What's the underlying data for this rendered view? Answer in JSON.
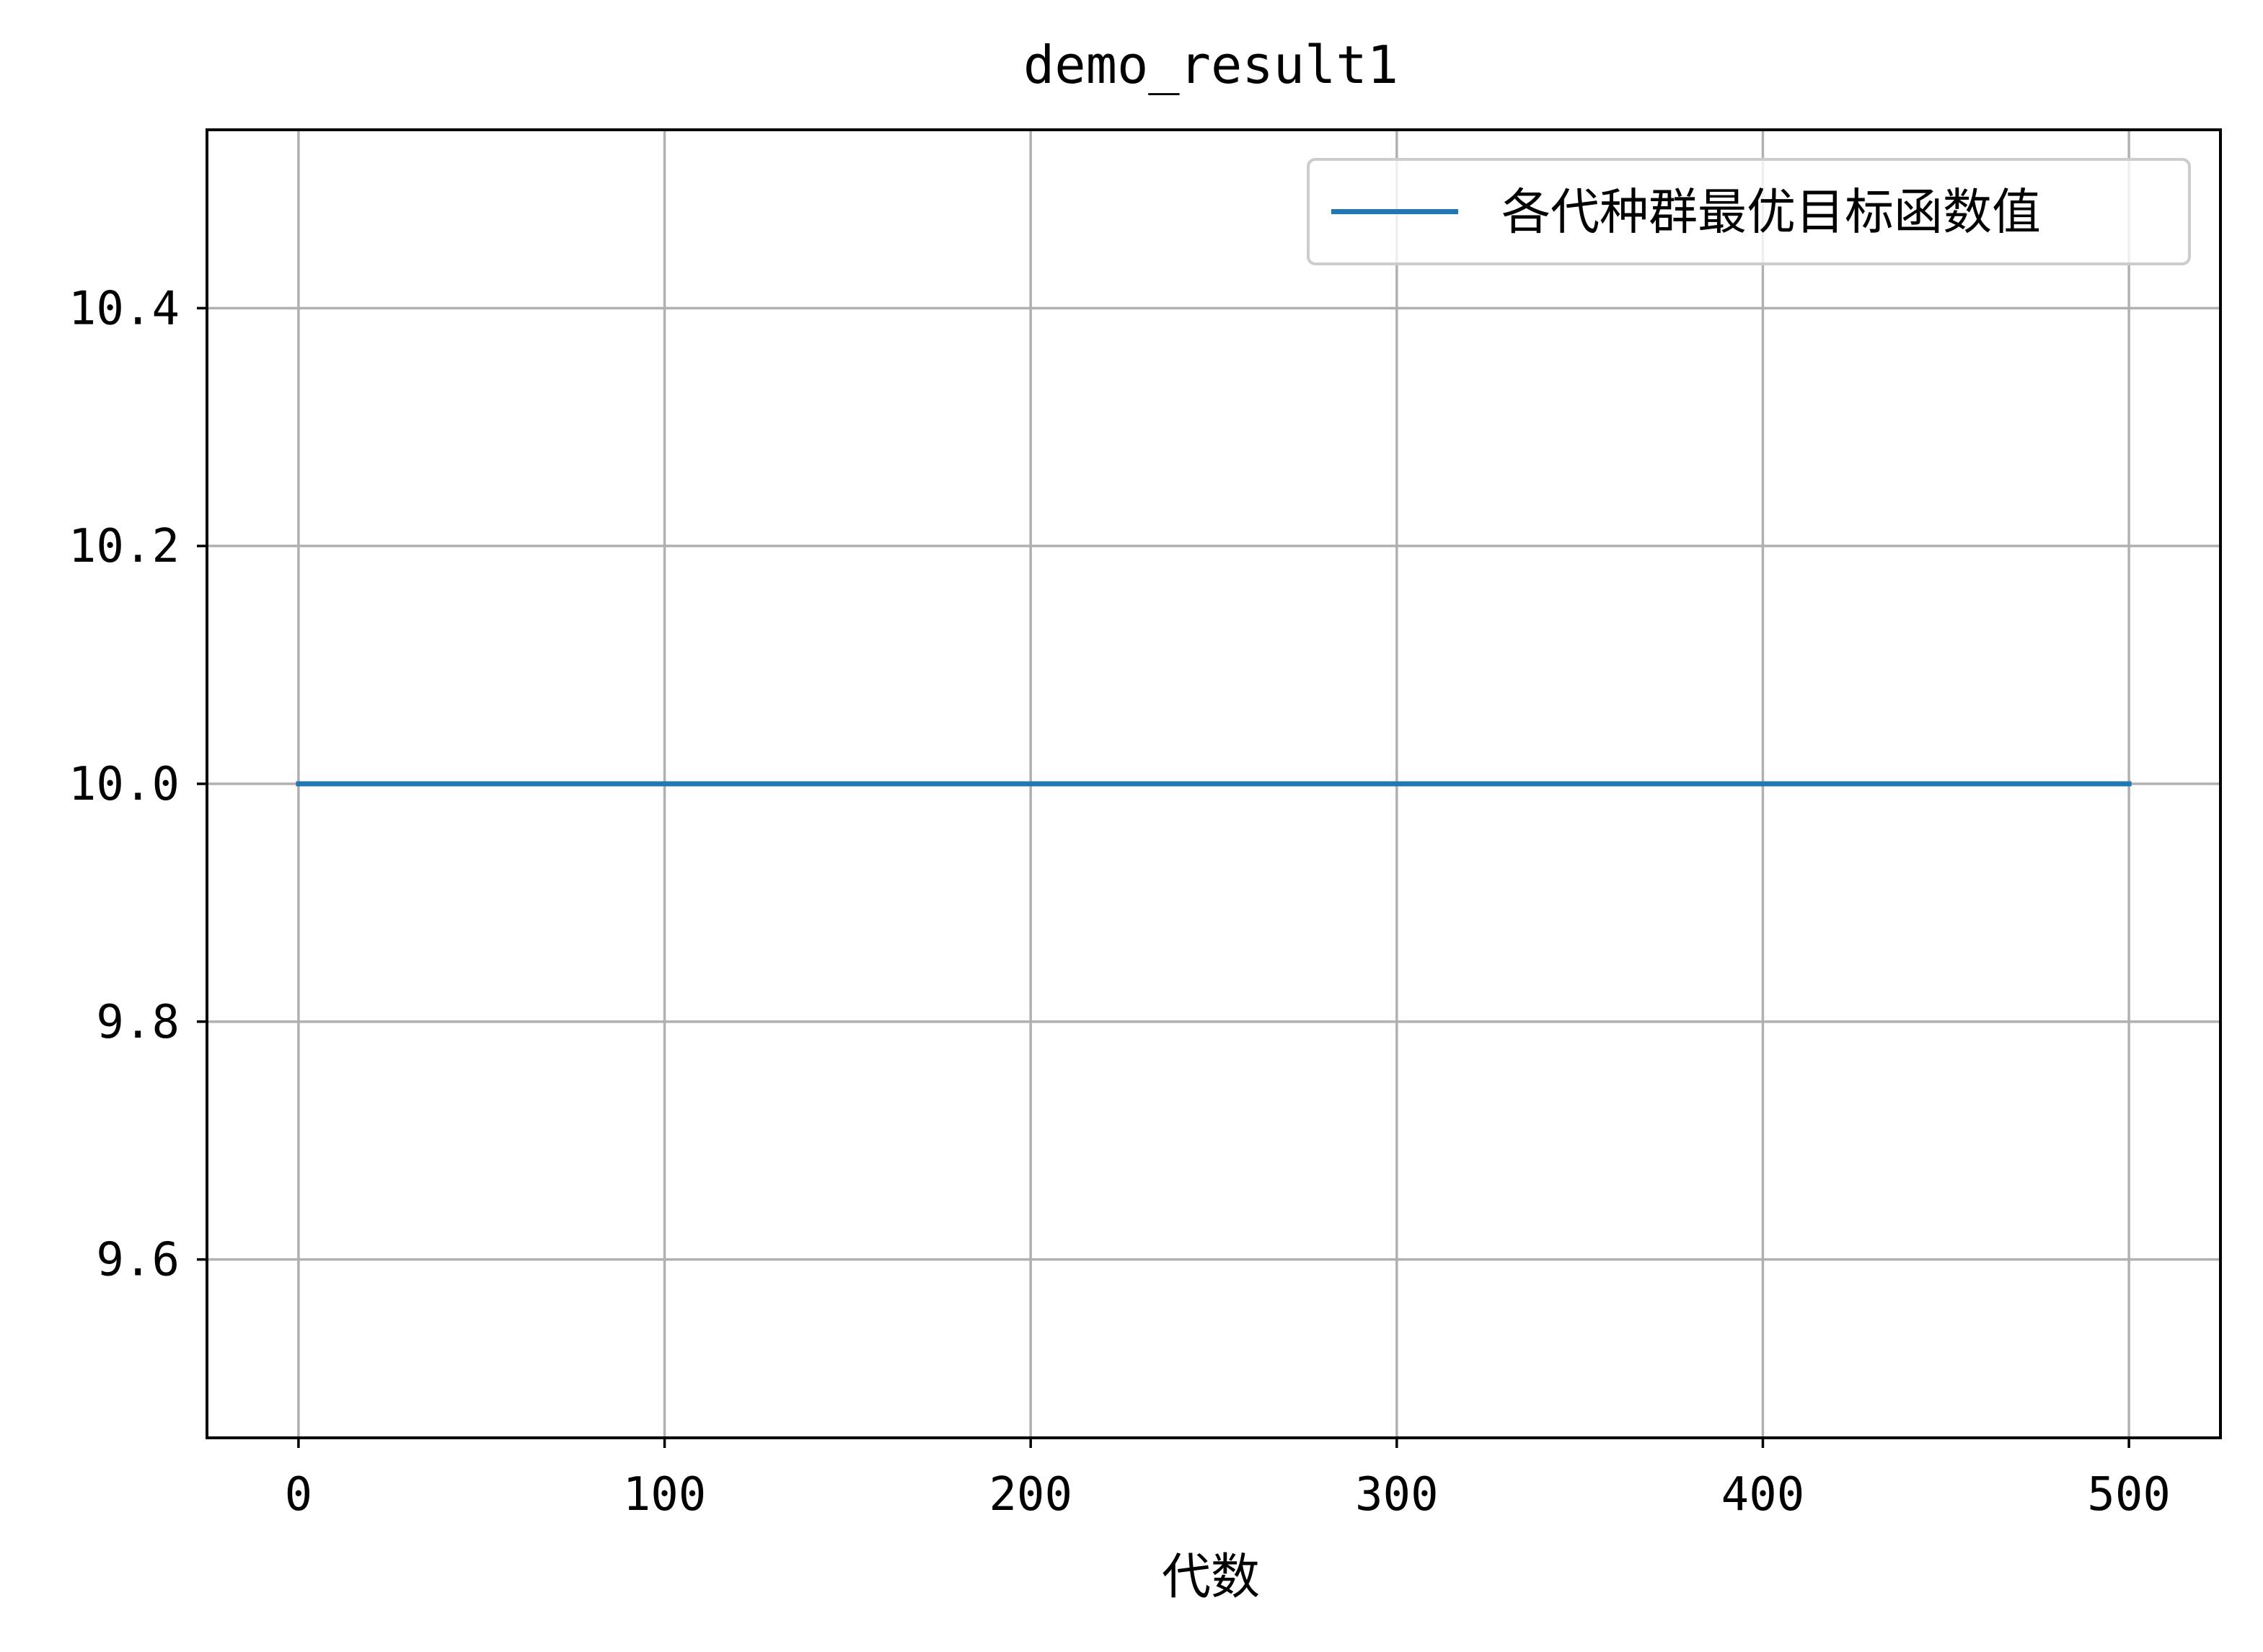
{
  "chart_data": {
    "type": "line",
    "title": "demo_result1",
    "xlabel": "代数",
    "ylabel": "",
    "xlim": [
      -25,
      525
    ],
    "ylim": [
      9.45,
      10.55
    ],
    "x_ticks": [
      0,
      100,
      200,
      300,
      400,
      500
    ],
    "x_tick_labels": [
      "0",
      "100",
      "200",
      "300",
      "400",
      "500"
    ],
    "y_ticks": [
      9.6,
      9.8,
      10.0,
      10.2,
      10.4
    ],
    "y_tick_labels": [
      "9.6",
      "9.8",
      "10.0",
      "10.2",
      "10.4"
    ],
    "grid": true,
    "legend_position": "top-right",
    "series": [
      {
        "name": "各代种群最优目标函数值",
        "color": "#1f77b4",
        "x": [
          0,
          500
        ],
        "y": [
          10.0,
          10.0
        ]
      }
    ]
  }
}
